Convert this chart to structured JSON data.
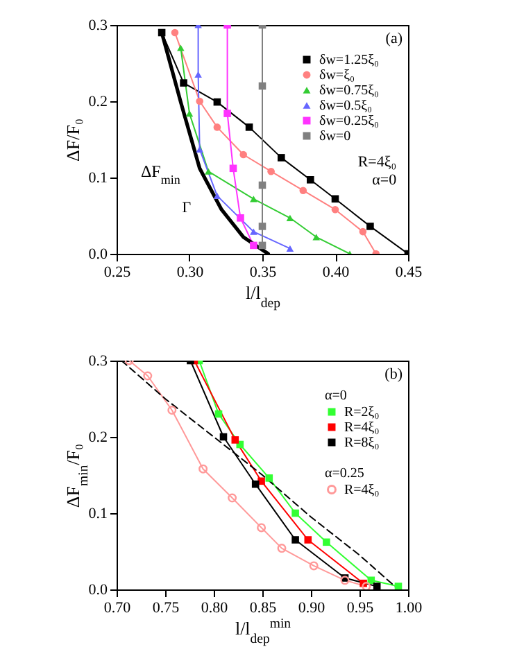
{
  "chart_data": [
    {
      "type": "line",
      "xlabel": "l/l$_{dep}$",
      "ylabel": "ΔF/F₀",
      "xlim": [
        0.25,
        0.45
      ],
      "xticks": [
        0.25,
        {
          "value": 0.3,
          "label": "0.30"
        },
        0.35,
        {
          "value": 0.4,
          "label": "0.40"
        },
        0.45
      ],
      "ylim": [
        0,
        0.3
      ],
      "yticks": [
        {
          "value": 0,
          "label": "0.0"
        },
        0.1,
        0.2,
        0.3
      ],
      "grid": false,
      "legend": "top right",
      "line_style": "solid",
      "annotations": [
        "(a)",
        "R=4ξ₀",
        "α=0",
        "Γ"
      ],
      "series": [
        {
          "name": "δw=1.25ξ₀",
          "color": "#000000",
          "marker": "square",
          "x": [
            0.281,
            0.296,
            0.319,
            0.341,
            0.363,
            0.383,
            0.4,
            0.424,
            0.45
          ],
          "values": [
            0.29,
            0.224,
            0.199,
            0.166,
            0.126,
            0.097,
            0.072,
            0.036,
            0.0
          ]
        },
        {
          "name": "δw=ξ₀",
          "color": "#ff8080",
          "marker": "circle",
          "x": [
            0.29,
            0.307,
            0.319,
            0.337,
            0.356,
            0.378,
            0.4,
            0.419,
            0.428
          ],
          "values": [
            0.29,
            0.2,
            0.166,
            0.13,
            0.108,
            0.083,
            0.058,
            0.029,
            0.0
          ]
        },
        {
          "name": "δw=0.75ξ₀",
          "color": "#33cc33",
          "marker": "triangle",
          "x": [
            0.294,
            0.3,
            0.313,
            0.344,
            0.369,
            0.387,
            0.41
          ],
          "values": [
            0.27,
            0.184,
            0.108,
            0.072,
            0.047,
            0.022,
            0.0
          ]
        },
        {
          "name": "δw=0.5ξ₀",
          "color": "#6666ff",
          "marker": "triangle",
          "x": [
            0.306,
            0.306,
            0.307,
            0.319,
            0.344,
            0.369
          ],
          "values": [
            0.3,
            0.235,
            0.137,
            0.076,
            0.029,
            0.007
          ]
        },
        {
          "name": "δw=0.25ξ₀",
          "color": "#ff33ff",
          "marker": "square",
          "x": [
            0.326,
            0.326,
            0.33,
            0.335,
            0.344
          ],
          "values": [
            0.3,
            0.184,
            0.112,
            0.047,
            0.011
          ]
        },
        {
          "name": "δw=0",
          "color": "#808080",
          "marker": "square",
          "x": [
            0.35,
            0.35,
            0.35,
            0.35,
            0.35
          ],
          "values": [
            0.3,
            0.22,
            0.09,
            0.036,
            0.011
          ]
        },
        {
          "name": "ΔF$_{min}$",
          "color": "#000000",
          "marker": "none",
          "x": [
            0.281,
            0.294,
            0.307,
            0.322,
            0.337,
            0.354
          ],
          "values": [
            0.29,
            0.199,
            0.112,
            0.058,
            0.022,
            0.0
          ]
        }
      ]
    },
    {
      "type": "line",
      "xlabel": "l/l$_{dep}$$^{min}$",
      "ylabel": "ΔF$_{min}$/F₀",
      "xlim": [
        0.7,
        1.0
      ],
      "xticks": [
        {
          "value": 0.7,
          "label": "0.70"
        },
        0.75,
        {
          "value": 0.8,
          "label": "0.80"
        },
        0.85,
        {
          "value": 0.9,
          "label": "0.90"
        },
        0.95,
        {
          "value": 1.0,
          "label": "1.00"
        }
      ],
      "ylim": [
        0,
        0.3
      ],
      "yticks": [
        {
          "value": 0,
          "label": "0.0"
        },
        0.1,
        0.2,
        0.3
      ],
      "grid": false,
      "legend": "top right",
      "legend_title": [
        "α=0",
        "α=0.25"
      ],
      "annotations": [
        "(b)"
      ],
      "series": [
        {
          "name": "R=2ξ₀",
          "color": "#33ff33",
          "marker": "square",
          "line_style": "solid",
          "x": [
            0.785,
            0.805,
            0.827,
            0.857,
            0.884,
            0.916,
            0.962,
            0.99
          ],
          "values": [
            0.3,
            0.23,
            0.19,
            0.146,
            0.1,
            0.062,
            0.012,
            0.004
          ]
        },
        {
          "name": "R=4ξ₀",
          "color": "#ff0000",
          "marker": "square",
          "line_style": "solid",
          "x": [
            0.78,
            0.822,
            0.849,
            0.897,
            0.954
          ],
          "values": [
            0.3,
            0.196,
            0.142,
            0.065,
            0.008
          ]
        },
        {
          "name": "R=8ξ₀",
          "color": "#000000",
          "marker": "square",
          "line_style": "solid",
          "x": [
            0.776,
            0.81,
            0.843,
            0.884,
            0.935,
            0.968
          ],
          "values": [
            0.3,
            0.2,
            0.138,
            0.065,
            0.015,
            0.004
          ]
        },
        {
          "name": "R=4ξ₀",
          "color": "#ff9999",
          "marker": "circle",
          "line_style": "solid",
          "x": [
            0.713,
            0.732,
            0.757,
            0.789,
            0.819,
            0.849,
            0.87,
            0.903,
            0.935,
            0.957
          ],
          "values": [
            0.3,
            0.28,
            0.235,
            0.158,
            0.12,
            0.081,
            0.054,
            0.031,
            0.012,
            0.004
          ]
        },
        {
          "color": "#000000",
          "marker": "none",
          "line_style": "dashed",
          "x": [
            0.705,
            0.75,
            0.8,
            0.85,
            0.9,
            0.95,
            0.99
          ],
          "values": [
            0.3,
            0.25,
            0.2,
            0.15,
            0.095,
            0.045,
            0.0
          ]
        }
      ]
    }
  ]
}
